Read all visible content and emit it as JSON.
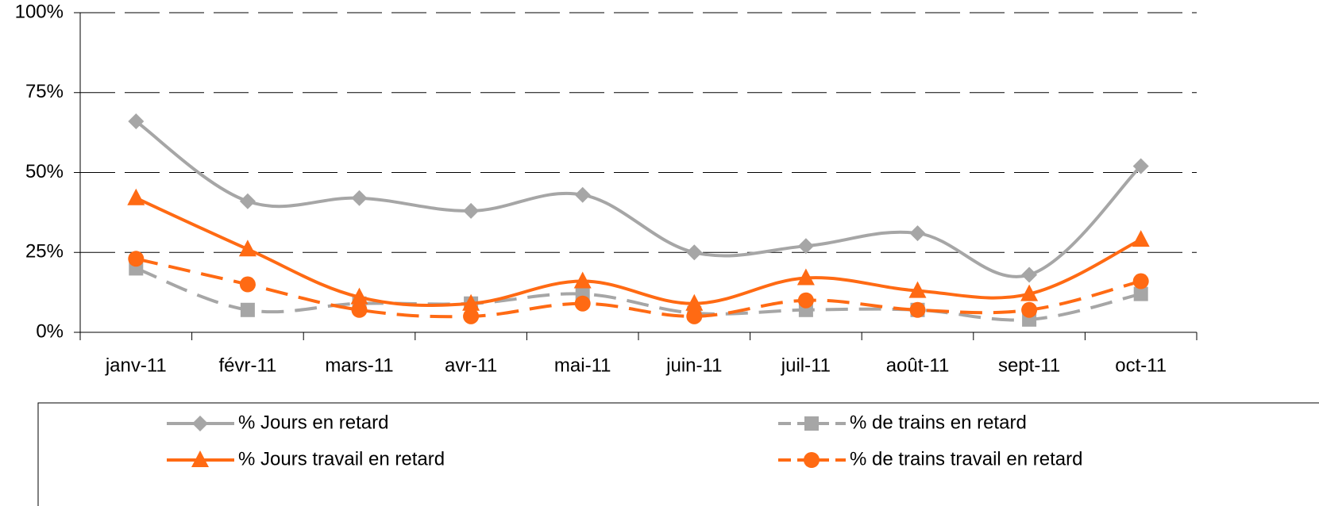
{
  "chart_data": {
    "type": "line",
    "categories": [
      "janv-11",
      "févr-11",
      "mars-11",
      "avr-11",
      "mai-11",
      "juin-11",
      "juil-11",
      "août-11",
      "sept-11",
      "oct-11"
    ],
    "series": [
      {
        "name": "% Jours en retard",
        "color": "#a6a6a6",
        "dash": false,
        "marker": "diamond",
        "values": [
          66,
          41,
          42,
          38,
          43,
          25,
          27,
          31,
          18,
          52
        ]
      },
      {
        "name": "% de trains en retard",
        "color": "#a6a6a6",
        "dash": true,
        "marker": "square",
        "values": [
          20,
          7,
          9,
          9,
          12,
          6,
          7,
          7,
          4,
          12
        ]
      },
      {
        "name": "% Jours travail en retard",
        "color": "#ff6a13",
        "dash": false,
        "marker": "triangle",
        "values": [
          42,
          26,
          11,
          9,
          16,
          9,
          17,
          13,
          12,
          29
        ]
      },
      {
        "name": "% de trains travail en retard",
        "color": "#ff6a13",
        "dash": true,
        "marker": "circle",
        "values": [
          23,
          15,
          7,
          5,
          9,
          5,
          10,
          7,
          7,
          16
        ]
      }
    ],
    "ylim": [
      0,
      100
    ],
    "yticks": [
      {
        "value": 0,
        "label": "0%"
      },
      {
        "value": 25,
        "label": "25%"
      },
      {
        "value": 50,
        "label": "50%"
      },
      {
        "value": 75,
        "label": "75%"
      },
      {
        "value": 100,
        "label": "100%"
      }
    ],
    "grid": true,
    "legend": "bottom"
  }
}
